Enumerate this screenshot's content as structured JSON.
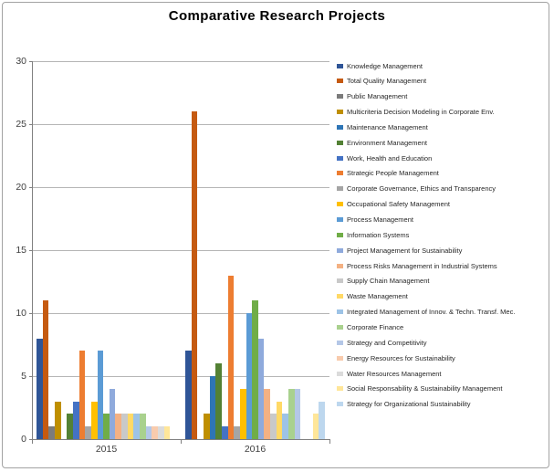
{
  "chart_data": {
    "type": "bar",
    "title": "Comparative Research Projects",
    "categories": [
      "2015",
      "2016"
    ],
    "xlabel": "",
    "ylabel": "",
    "ylim": [
      0,
      30
    ],
    "y_ticks": [
      0,
      5,
      10,
      15,
      20,
      25,
      30
    ],
    "grid": true,
    "legend_position": "right",
    "series": [
      {
        "name": "Knowledge Management",
        "color": "#2F5597",
        "values": [
          8,
          7
        ]
      },
      {
        "name": "Total Quality Management",
        "color": "#C55A11",
        "values": [
          11,
          26
        ]
      },
      {
        "name": "Public Management",
        "color": "#7B7B7B",
        "values": [
          1,
          0
        ]
      },
      {
        "name": "Multicriteria Decision Modeling in Corporate Env.",
        "color": "#BF8F00",
        "values": [
          3,
          2
        ]
      },
      {
        "name": "Maintenance Management",
        "color": "#2E75B6",
        "values": [
          0,
          5
        ]
      },
      {
        "name": "Environment Management",
        "color": "#538135",
        "values": [
          2,
          6
        ]
      },
      {
        "name": "Work, Health and Education",
        "color": "#4472C4",
        "values": [
          3,
          1
        ]
      },
      {
        "name": "Strategic People Management",
        "color": "#ED7D31",
        "values": [
          7,
          13
        ]
      },
      {
        "name": "Corporate Governance, Ethics and Transparency",
        "color": "#A5A5A5",
        "values": [
          1,
          1
        ]
      },
      {
        "name": "Occupational Safety Management",
        "color": "#FFC000",
        "values": [
          3,
          4
        ]
      },
      {
        "name": "Process Management",
        "color": "#5B9BD5",
        "values": [
          7,
          10
        ]
      },
      {
        "name": "Information Systems",
        "color": "#70AD47",
        "values": [
          2,
          11
        ]
      },
      {
        "name": "Project Management for Sustainability",
        "color": "#8FAADC",
        "values": [
          4,
          8
        ]
      },
      {
        "name": "Process Risks Management in Industrial Systems",
        "color": "#F4B183",
        "values": [
          2,
          4
        ]
      },
      {
        "name": "Supply Chain Management",
        "color": "#C9C9C9",
        "values": [
          2,
          2
        ]
      },
      {
        "name": "Waste Management",
        "color": "#FFD966",
        "values": [
          2,
          3
        ]
      },
      {
        "name": "Integrated Management of Innov. & Techn. Transf. Mec.",
        "color": "#9DC3E6",
        "values": [
          2,
          2
        ]
      },
      {
        "name": "Corporate Finance",
        "color": "#A9D18E",
        "values": [
          2,
          4
        ]
      },
      {
        "name": "Strategy and Competitivity",
        "color": "#B4C7E7",
        "values": [
          1,
          4
        ]
      },
      {
        "name": "Energy Resources for Sustainability",
        "color": "#F8CBAD",
        "values": [
          1,
          0
        ]
      },
      {
        "name": "Water Resources Management",
        "color": "#DBDBDB",
        "values": [
          1,
          0
        ]
      },
      {
        "name": "Social Responsability & Sustainability Management",
        "color": "#FFE699",
        "values": [
          1,
          2
        ]
      },
      {
        "name": "Strategy for Organizational Sustainability",
        "color": "#BDD7EE",
        "values": [
          0,
          3
        ]
      }
    ],
    "colors": {
      "axis": "#808080",
      "gridline": "#B5B5B5",
      "axis_text": "#404040",
      "legend_text": "#262626",
      "title_text": "#000000",
      "frame_border": "#A3A3A3"
    }
  }
}
